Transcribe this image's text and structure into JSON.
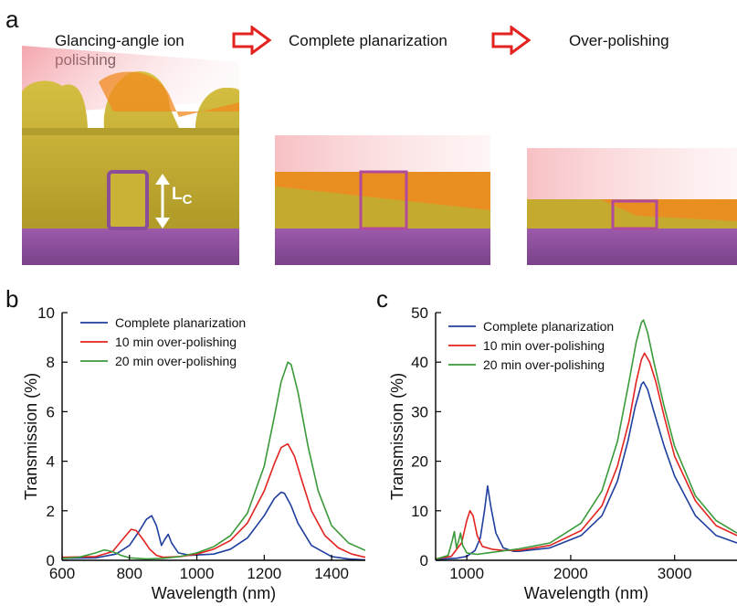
{
  "panel_a": {
    "letter": "a",
    "steps": [
      {
        "label": "Glancing-angle ion polishing"
      },
      {
        "label": "Complete planarization"
      },
      {
        "label": "Over-polishing"
      }
    ],
    "lc_label": "L",
    "lc_sub": "C",
    "colors": {
      "gold": "#c9b236",
      "orange": "#f08a1e",
      "substrate": "#8a4d99",
      "beam": "#f3a2a6",
      "arrow": "#e3231f"
    }
  },
  "chart_data": [
    {
      "panel": "b",
      "type": "line",
      "xlabel": "Wavelength (nm)",
      "ylabel": "Transmission (%)",
      "xlim": [
        600,
        1500
      ],
      "ylim": [
        0,
        10
      ],
      "xticks": [
        600,
        800,
        1000,
        1200,
        1400
      ],
      "yticks": [
        0,
        2,
        4,
        6,
        8,
        10
      ],
      "legend": "top-left",
      "series": [
        {
          "name": "Complete planarization",
          "color": "#1f3f9e",
          "x": [
            600,
            700,
            760,
            800,
            830,
            850,
            866,
            880,
            895,
            905,
            915,
            925,
            945,
            980,
            1050,
            1100,
            1150,
            1200,
            1230,
            1250,
            1260,
            1280,
            1300,
            1340,
            1400,
            1450,
            1500
          ],
          "y": [
            0.08,
            0.1,
            0.25,
            0.6,
            1.2,
            1.65,
            1.8,
            1.4,
            0.6,
            0.85,
            1.05,
            0.7,
            0.3,
            0.2,
            0.25,
            0.45,
            0.9,
            1.8,
            2.5,
            2.75,
            2.7,
            2.2,
            1.5,
            0.6,
            0.15,
            0.05,
            0.02
          ]
        },
        {
          "name": "10 min over-polishing",
          "color": "#e3231f",
          "x": [
            600,
            700,
            750,
            780,
            805,
            820,
            840,
            860,
            880,
            900,
            950,
            1000,
            1050,
            1100,
            1150,
            1200,
            1230,
            1250,
            1270,
            1290,
            1310,
            1340,
            1380,
            1420,
            1460,
            1500
          ],
          "y": [
            0.12,
            0.15,
            0.35,
            0.85,
            1.25,
            1.2,
            0.85,
            0.45,
            0.2,
            0.12,
            0.15,
            0.25,
            0.45,
            0.8,
            1.5,
            2.8,
            3.9,
            4.55,
            4.7,
            4.2,
            3.3,
            2.0,
            1.0,
            0.5,
            0.25,
            0.12
          ]
        },
        {
          "name": "20 min over-polishing",
          "color": "#3a9a3a",
          "x": [
            600,
            650,
            700,
            725,
            750,
            775,
            800,
            850,
            900,
            950,
            1000,
            1050,
            1100,
            1150,
            1200,
            1230,
            1250,
            1270,
            1280,
            1300,
            1330,
            1360,
            1400,
            1450,
            1500
          ],
          "y": [
            0.08,
            0.12,
            0.3,
            0.42,
            0.35,
            0.2,
            0.1,
            0.05,
            0.08,
            0.15,
            0.3,
            0.55,
            1.0,
            1.9,
            3.8,
            5.8,
            7.2,
            8.0,
            7.9,
            6.8,
            4.6,
            2.8,
            1.4,
            0.7,
            0.4
          ]
        }
      ]
    },
    {
      "panel": "c",
      "type": "line",
      "xlabel": "Wavelength (nm)",
      "ylabel": "Transmission (%)",
      "xlim": [
        700,
        3600
      ],
      "ylim": [
        0,
        50
      ],
      "xticks": [
        1000,
        2000,
        3000
      ],
      "yticks": [
        0,
        10,
        20,
        30,
        40,
        50
      ],
      "legend": "top-left",
      "series": [
        {
          "name": "Complete planarization",
          "color": "#1f3f9e",
          "x": [
            700,
            900,
            1000,
            1080,
            1130,
            1170,
            1200,
            1230,
            1280,
            1350,
            1450,
            1500,
            1800,
            2100,
            2300,
            2450,
            2550,
            2620,
            2680,
            2700,
            2740,
            2800,
            2900,
            3000,
            3200,
            3400,
            3600
          ],
          "y": [
            0.2,
            0.4,
            0.8,
            2.0,
            4.5,
            10.0,
            15.0,
            11.0,
            5.5,
            2.5,
            1.8,
            1.8,
            2.5,
            5.0,
            9.0,
            16.0,
            24.0,
            31.0,
            35.5,
            36.0,
            34.5,
            30.0,
            23.0,
            17.0,
            9.0,
            5.0,
            3.5
          ]
        },
        {
          "name": "10 min over-polishing",
          "color": "#e3231f",
          "x": [
            700,
            850,
            950,
            1000,
            1030,
            1060,
            1100,
            1150,
            1250,
            1350,
            1500,
            1800,
            2100,
            2300,
            2450,
            2560,
            2630,
            2680,
            2710,
            2760,
            2820,
            2900,
            3000,
            3200,
            3400,
            3600
          ],
          "y": [
            0.3,
            0.8,
            3.5,
            8.0,
            10.0,
            9.0,
            5.0,
            2.8,
            2.2,
            2.0,
            2.0,
            3.0,
            6.0,
            11.0,
            19.0,
            28.0,
            36.0,
            40.5,
            41.8,
            40.0,
            36.0,
            29.0,
            21.0,
            12.0,
            7.0,
            5.0
          ]
        },
        {
          "name": "20 min over-polishing",
          "color": "#3a9a3a",
          "x": [
            700,
            820,
            860,
            880,
            900,
            920,
            940,
            960,
            1000,
            1100,
            1200,
            1500,
            1800,
            2100,
            2300,
            2450,
            2560,
            2630,
            2680,
            2700,
            2740,
            2800,
            2900,
            3000,
            3200,
            3400,
            3600
          ],
          "y": [
            0.2,
            1.0,
            4.0,
            5.8,
            2.5,
            3.8,
            5.5,
            3.0,
            1.5,
            1.2,
            1.5,
            2.3,
            3.5,
            7.5,
            14.0,
            24.0,
            36.0,
            44.0,
            48.0,
            48.5,
            46.0,
            40.0,
            31.0,
            23.0,
            13.0,
            8.0,
            5.5
          ]
        }
      ]
    }
  ]
}
